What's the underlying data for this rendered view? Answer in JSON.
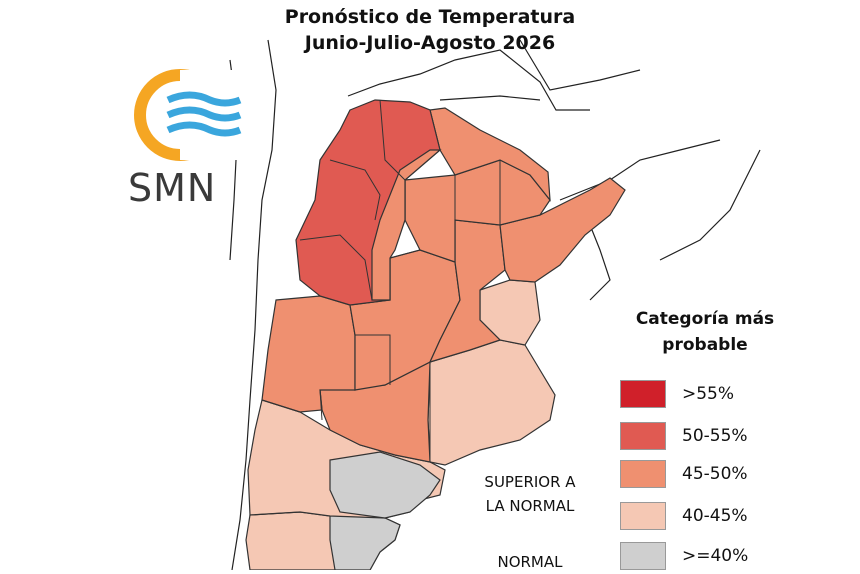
{
  "title_line1": "Pronóstico de Temperatura",
  "title_line2": "Junio-Julio-Agosto 2026",
  "logo_text": "SMN",
  "legend": {
    "title_line1": "Categoría más",
    "title_line2": "probable",
    "items": [
      {
        "label": ">55%",
        "color": "#d0202a"
      },
      {
        "label": "50-55%",
        "color": "#e05a52"
      },
      {
        "label": "45-50%",
        "color": "#ef9070"
      },
      {
        "label": "40-45%",
        "color": "#f5c8b4"
      },
      {
        "label": ">=40%",
        "color": "#cfcfcf"
      }
    ]
  },
  "category_labels": {
    "superior_line1": "SUPERIOR A",
    "superior_line2": "LA NORMAL",
    "normal": "NORMAL"
  },
  "colors": {
    "logo_orange": "#f5a623",
    "logo_blue": "#3aa6dd",
    "border": "#333333"
  }
}
